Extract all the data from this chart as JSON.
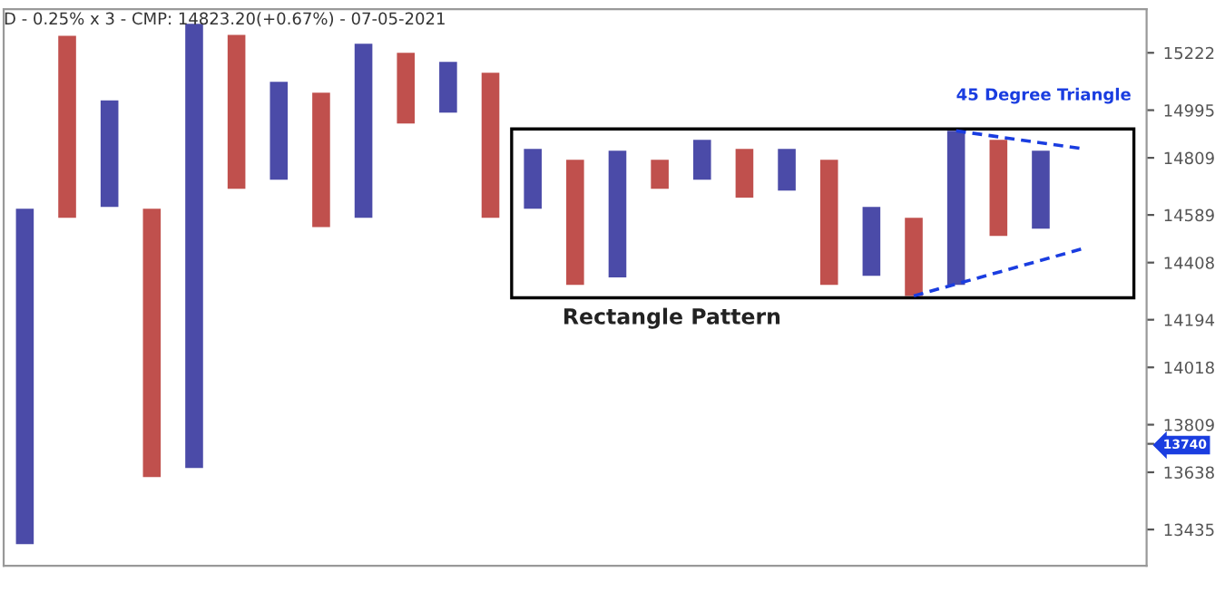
{
  "chart_data": {
    "type": "bar",
    "title": "D - 0.25% x 3 - CMP: 14823.20(+0.67%) - 07-05-2021",
    "categories": [
      null,
      null,
      null,
      null,
      null,
      null,
      null,
      null,
      null,
      null,
      null,
      null,
      null,
      null,
      null,
      null,
      null,
      null,
      null,
      null,
      null,
      null,
      null,
      null,
      null,
      null,
      null
    ],
    "base": [
      13384,
      14578,
      14620,
      13621,
      13653,
      14689,
      14724,
      14543,
      14578,
      14943,
      14985,
      14578,
      14613,
      14324,
      14352,
      14689,
      14724,
      14655,
      14682,
      14324,
      14358,
      14283,
      14324,
      14509,
      14537,
      null,
      null
    ],
    "values": [
      1229,
      712,
      413,
      992,
      1685,
      605,
      383,
      521,
      680,
      279,
      201,
      565,
      231,
      477,
      485,
      112,
      155,
      189,
      162,
      477,
      262,
      295,
      590,
      370,
      300,
      null,
      null
    ],
    "colors": [
      "#4b4ba8",
      "#c0504d",
      "#4b4ba8",
      "#c0504d",
      "#4b4ba8",
      "#c0504d",
      "#4b4ba8",
      "#c0504d",
      "#4b4ba8",
      "#c0504d",
      "#4b4ba8",
      "#c0504d",
      "#4b4ba8",
      "#c0504d",
      "#4b4ba8",
      "#c0504d",
      "#4b4ba8",
      "#c0504d",
      "#4b4ba8",
      "#c0504d",
      "#4b4ba8",
      "#c0504d",
      "#4b4ba8",
      "#c0504d",
      "#4b4ba8",
      "#4b4ba8",
      "#4b4ba8"
    ],
    "series": [
      {
        "type": "line",
        "values": [
          null,
          null,
          null,
          null,
          null,
          null,
          null,
          null,
          null,
          null,
          null,
          null,
          null,
          null,
          null,
          null,
          null,
          null,
          null,
          null,
          null,
          14283,
          null,
          null,
          null,
          14461,
          null
        ],
        "color": "#1a3de0",
        "line_style": "dashed"
      },
      {
        "type": "line",
        "values": [
          null,
          null,
          null,
          null,
          null,
          null,
          null,
          null,
          null,
          null,
          null,
          null,
          null,
          null,
          null,
          null,
          null,
          null,
          null,
          null,
          null,
          null,
          14914,
          null,
          null,
          14844,
          null
        ],
        "color": "#1a3de0",
        "line_style": "dashed"
      }
    ],
    "log": "y",
    "ylim": [
      13308,
      15397
    ],
    "yticks": [
      13435,
      13638,
      {
        "value": 13740,
        "label": "13740"
      },
      13809,
      14018,
      14194,
      14408,
      14589,
      14809,
      14995,
      15222
    ],
    "annotations": [
      "Rectangle Pattern",
      "45 Degree Triangle"
    ],
    "grid": false,
    "legend": false
  }
}
